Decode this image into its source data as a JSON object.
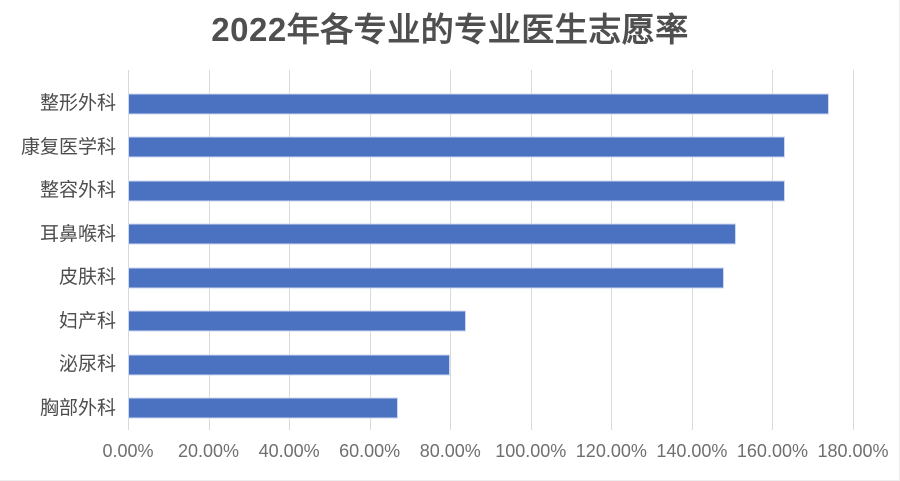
{
  "chart_data": {
    "type": "bar",
    "orientation": "horizontal",
    "title": "2022年各专业的专业医生志愿率",
    "categories": [
      "整形外科",
      "康复医学科",
      "整容外科",
      "耳鼻喉科",
      "皮肤科",
      "妇产科",
      "泌尿科",
      "胸部外科"
    ],
    "values": [
      174,
      163,
      163,
      151,
      148,
      84,
      80,
      67
    ],
    "unit": "%",
    "xlabel": "",
    "ylabel": "",
    "xlim": [
      0,
      180
    ],
    "x_tick_interval": 20,
    "x_tick_labels": [
      "0.00%",
      "20.00%",
      "40.00%",
      "60.00%",
      "80.00%",
      "100.00%",
      "120.00%",
      "140.00%",
      "160.00%",
      "180.00%"
    ],
    "grid": "vertical-gridlines-on",
    "legend": "none",
    "colors": {
      "bar": "#4b71c1",
      "bar_border": "#ccd8ef",
      "gridline": "#d9d9d9",
      "title_text": "#4f4f4f",
      "category_text": "#4d4d4d",
      "tick_text": "#6f6f6f",
      "background": "#ffffff"
    }
  }
}
